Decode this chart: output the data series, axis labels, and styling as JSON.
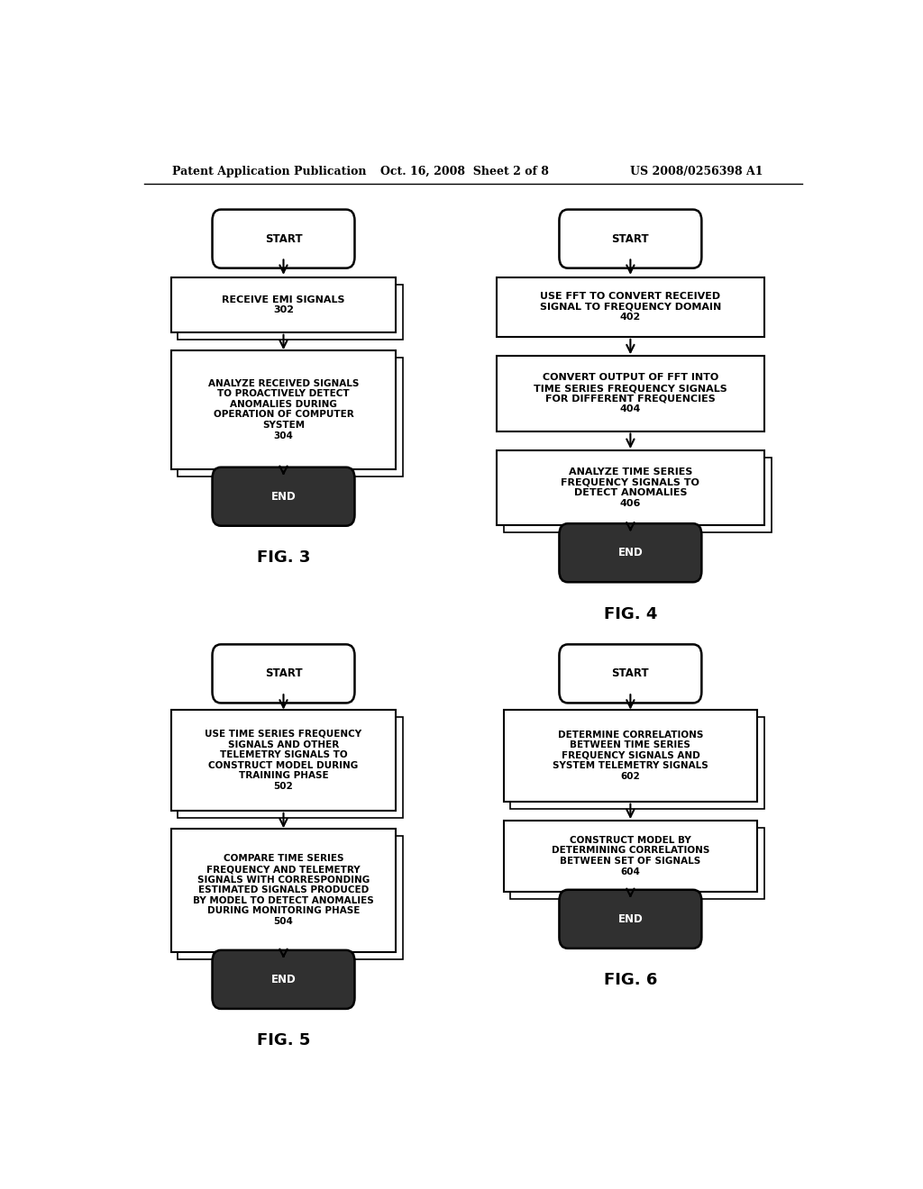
{
  "bg_color": "#ffffff",
  "header_text": "Patent Application Publication",
  "header_date": "Oct. 16, 2008  Sheet 2 of 8",
  "header_patent": "US 2008/0256398 A1"
}
